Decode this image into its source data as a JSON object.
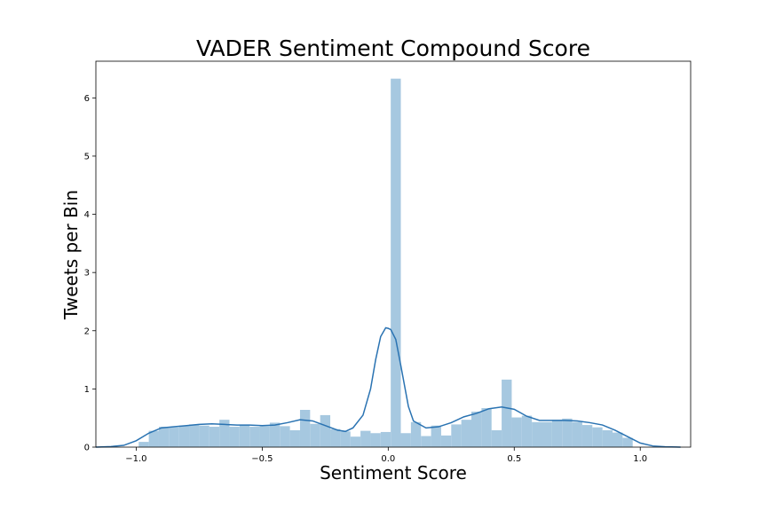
{
  "chart_data": {
    "type": "bar",
    "title": "VADER Sentiment Compound Score",
    "xlabel": "Sentiment Score",
    "ylabel": "Tweets per Bin",
    "xlim": [
      -1.16,
      1.2
    ],
    "ylim": [
      0,
      6.63
    ],
    "xticks": [
      -1.0,
      -0.5,
      0.0,
      0.5,
      1.0
    ],
    "xtick_labels": [
      "−1.0",
      "−0.5",
      "0.0",
      "0.5",
      "1.0"
    ],
    "yticks": [
      0,
      1,
      2,
      3,
      4,
      5,
      6
    ],
    "ytick_labels": [
      "0",
      "1",
      "2",
      "3",
      "4",
      "5",
      "6"
    ],
    "grid": false,
    "legend": "none",
    "bar_color": "#a6c8e0",
    "kde_color": "#2a73b2",
    "histogram": {
      "bin_width": 0.04,
      "bin_starts": [
        -0.99,
        -0.95,
        -0.91,
        -0.87,
        -0.83,
        -0.79,
        -0.75,
        -0.71,
        -0.67,
        -0.63,
        -0.59,
        -0.55,
        -0.51,
        -0.47,
        -0.43,
        -0.39,
        -0.35,
        -0.31,
        -0.27,
        -0.23,
        -0.19,
        -0.15,
        -0.11,
        -0.07,
        -0.03,
        0.01,
        0.05,
        0.09,
        0.13,
        0.17,
        0.21,
        0.25,
        0.29,
        0.33,
        0.37,
        0.41,
        0.45,
        0.49,
        0.53,
        0.57,
        0.61,
        0.65,
        0.69,
        0.73,
        0.77,
        0.81,
        0.85,
        0.89,
        0.93
      ],
      "values": [
        0.09,
        0.28,
        0.35,
        0.34,
        0.37,
        0.39,
        0.37,
        0.35,
        0.47,
        0.35,
        0.38,
        0.35,
        0.36,
        0.42,
        0.36,
        0.29,
        0.64,
        0.4,
        0.55,
        0.31,
        0.27,
        0.18,
        0.28,
        0.24,
        0.26,
        6.33,
        0.24,
        0.43,
        0.19,
        0.37,
        0.2,
        0.39,
        0.47,
        0.61,
        0.67,
        0.29,
        1.16,
        0.51,
        0.54,
        0.43,
        0.43,
        0.47,
        0.49,
        0.43,
        0.38,
        0.34,
        0.29,
        0.25,
        0.16
      ]
    },
    "kde": {
      "x": [
        -1.16,
        -1.1,
        -1.05,
        -1.0,
        -0.95,
        -0.9,
        -0.85,
        -0.8,
        -0.75,
        -0.7,
        -0.65,
        -0.6,
        -0.55,
        -0.5,
        -0.45,
        -0.4,
        -0.35,
        -0.3,
        -0.25,
        -0.2,
        -0.17,
        -0.14,
        -0.1,
        -0.07,
        -0.05,
        -0.03,
        -0.01,
        0.0,
        0.01,
        0.03,
        0.05,
        0.08,
        0.1,
        0.15,
        0.2,
        0.25,
        0.3,
        0.35,
        0.4,
        0.45,
        0.5,
        0.55,
        0.6,
        0.65,
        0.7,
        0.75,
        0.8,
        0.85,
        0.9,
        0.95,
        1.0,
        1.05,
        1.1,
        1.16
      ],
      "y": [
        0.0,
        0.01,
        0.03,
        0.11,
        0.24,
        0.33,
        0.35,
        0.37,
        0.39,
        0.4,
        0.39,
        0.38,
        0.38,
        0.37,
        0.38,
        0.42,
        0.47,
        0.45,
        0.37,
        0.29,
        0.27,
        0.33,
        0.55,
        1.0,
        1.5,
        1.9,
        2.05,
        2.04,
        2.02,
        1.85,
        1.4,
        0.7,
        0.45,
        0.33,
        0.35,
        0.42,
        0.52,
        0.58,
        0.66,
        0.69,
        0.65,
        0.53,
        0.46,
        0.46,
        0.46,
        0.45,
        0.42,
        0.38,
        0.29,
        0.18,
        0.07,
        0.02,
        0.005,
        0.0
      ]
    }
  }
}
